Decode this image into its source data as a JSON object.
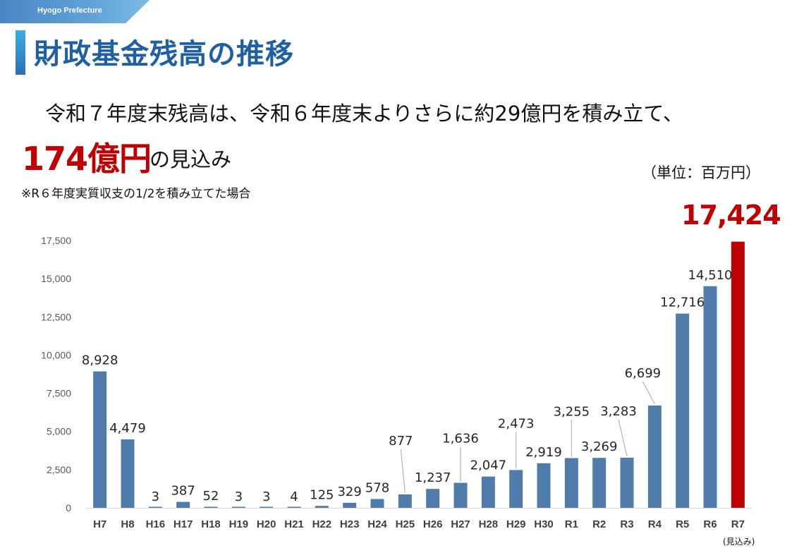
{
  "header": {
    "brand": "Hyogo Prefecture",
    "title": "財政基金残高の推移"
  },
  "summary": {
    "line1": "令和７年度末残高は、令和６年度末よりさらに約29億円を積み立て、",
    "amount": "174億円",
    "amount_suffix": "の見込み",
    "note": "※R６年度実質収支の1/2を積み立てた場合",
    "unit": "（単位：百万円）",
    "highlight_value": "17,424",
    "estimate_note": "(見込み)"
  },
  "colors": {
    "bar": "#4f7cab",
    "highlight": "#c00000",
    "title": "#1f5fa3"
  },
  "chart_data": {
    "type": "bar",
    "title": "財政基金残高の推移",
    "ylabel": "百万円",
    "xlabel": "",
    "ylim": [
      0,
      17500
    ],
    "yticks": [
      0,
      2500,
      5000,
      7500,
      10000,
      12500,
      15000,
      17500
    ],
    "ytick_labels": [
      "0",
      "2,500",
      "5,000",
      "7,500",
      "10,000",
      "12,500",
      "15,000",
      "17,500"
    ],
    "grid": false,
    "categories": [
      "H7",
      "H8",
      "H16",
      "H17",
      "H18",
      "H19",
      "H20",
      "H21",
      "H22",
      "H23",
      "H24",
      "H25",
      "H26",
      "H27",
      "H28",
      "H29",
      "H30",
      "R1",
      "R2",
      "R3",
      "R4",
      "R5",
      "R6",
      "R7"
    ],
    "values": [
      8928,
      4479,
      3,
      387,
      52,
      3,
      3,
      4,
      125,
      329,
      578,
      877,
      1237,
      1636,
      2047,
      2473,
      2919,
      3255,
      3269,
      3283,
      6699,
      12716,
      14510,
      17424
    ],
    "labels": [
      "8,928",
      "4,479",
      "3",
      "387",
      "52",
      "3",
      "3",
      "4",
      "125",
      "329",
      "578",
      "877",
      "1,237",
      "1,636",
      "2,047",
      "2,473",
      "2,919",
      "3,255",
      "3,269",
      "3,283",
      "6,699",
      "12,716",
      "14,510",
      "17,424"
    ],
    "highlight_category": "R7"
  }
}
